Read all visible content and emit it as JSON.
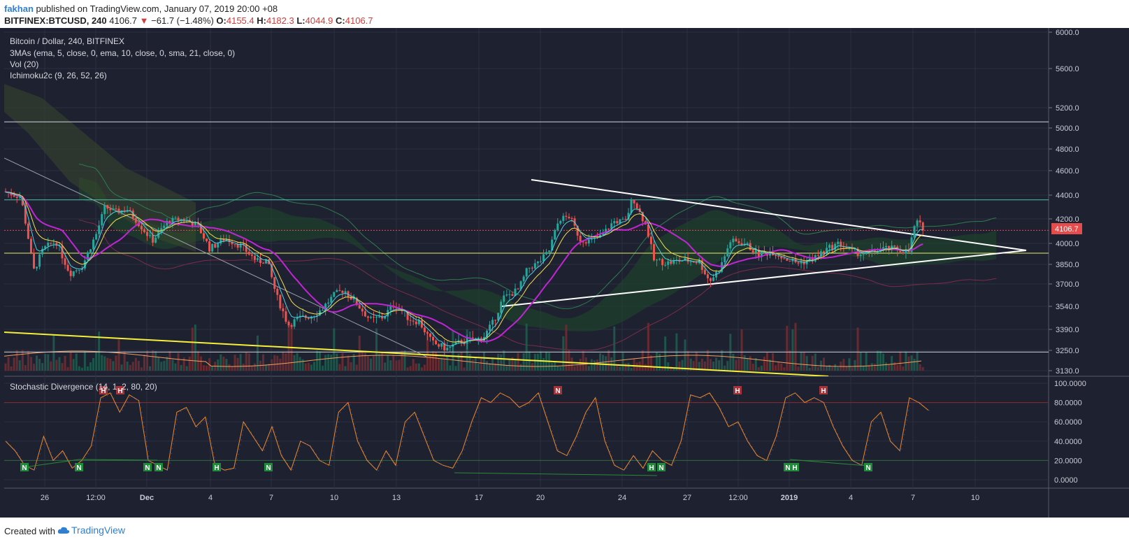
{
  "header": {
    "author": "fakhan",
    "published": "published on TradingView.com, January 07, 2019 20:00 +08",
    "symbol": "BITFINEX:BTCUSD, 240",
    "last": "4106.7",
    "change_arrow": "▼",
    "change": "−61.7 (−1.48%)",
    "o_label": "O:",
    "o_value": "4155.4",
    "h_label": "H:",
    "h_value": "4182.3",
    "l_label": "L:",
    "l_value": "4044.9",
    "c_label": "C:",
    "c_value": "4106.7"
  },
  "legend": {
    "title": "Bitcoin / Dollar, 240, BITFINEX",
    "mas": "3MAs (ema, 5, close, 0, ema, 10, close, 0, sma, 21, close, 0)",
    "vol": "Vol (20)",
    "ichimoku": "Ichimoku2c (9, 26, 52, 26)"
  },
  "stoch": {
    "title": "Stochastic Divergence (14, 1, 2, 80, 20)",
    "axis": [
      "100.0000",
      "80.0000",
      "60.0000",
      "40.0000",
      "20.0000",
      "0.0000"
    ]
  },
  "price_tag": "4106.7",
  "footer": {
    "created": "Created with",
    "brand": "TradingView"
  },
  "colors": {
    "background": "#1e2130",
    "grid": "#2b2f40",
    "up": "#26a69a",
    "down": "#ef5350",
    "tag": "#e74c4c"
  },
  "chart_data": {
    "type": "candlestick",
    "timeframe": "240",
    "y_axis_ticks": [
      6000,
      5600,
      5200,
      5000,
      4800,
      4600,
      4400,
      4200,
      4000,
      3850,
      3700,
      3540,
      3390,
      3250,
      3130
    ],
    "x_axis_ticks": [
      "26",
      "12:00",
      "Dec",
      "4",
      "7",
      "10",
      "13",
      "17",
      "20",
      "24",
      "27",
      "12:00",
      "2019",
      "4",
      "7",
      "10"
    ],
    "horizontal_levels": [
      5060,
      4360,
      4106.7,
      3930,
      3240
    ],
    "triangle": {
      "upper": [
        [
          760,
          4520
        ],
        [
          1468,
          3935
        ]
      ],
      "lower": [
        [
          718,
          3560
        ],
        [
          1468,
          3935
        ]
      ]
    },
    "stoch_labels": [
      "N",
      "N",
      "H",
      "H",
      "N",
      "N",
      "H",
      "N",
      "N",
      "H",
      "N",
      "H",
      "N",
      "H",
      "H",
      "N"
    ],
    "stoch_levels": [
      80,
      20
    ]
  }
}
